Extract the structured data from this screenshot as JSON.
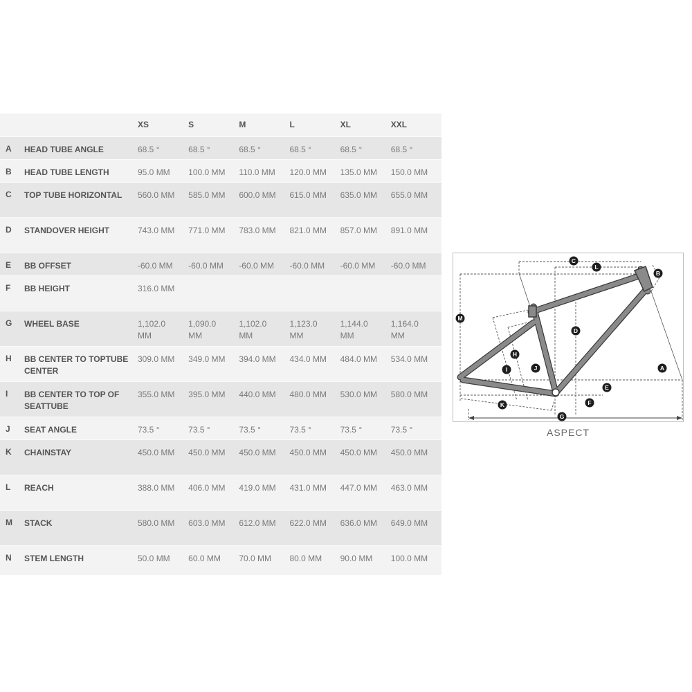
{
  "table": {
    "sizes": [
      "XS",
      "S",
      "M",
      "L",
      "XL",
      "XXL"
    ],
    "rows": [
      {
        "letter": "A",
        "name": "HEAD TUBE ANGLE",
        "values": [
          "68.5 °",
          "68.5 °",
          "68.5 °",
          "68.5 °",
          "68.5 °",
          "68.5 °"
        ]
      },
      {
        "letter": "B",
        "name": "HEAD TUBE LENGTH",
        "values": [
          "95.0 MM",
          "100.0 MM",
          "110.0 MM",
          "120.0 MM",
          "135.0 MM",
          "150.0 MM"
        ]
      },
      {
        "letter": "C",
        "name": "TOP TUBE HORIZONTAL",
        "values": [
          "560.0 MM",
          "585.0 MM",
          "600.0 MM",
          "615.0 MM",
          "635.0 MM",
          "655.0 MM"
        ]
      },
      {
        "letter": "D",
        "name": "STANDOVER HEIGHT",
        "values": [
          "743.0 MM",
          "771.0 MM",
          "783.0 MM",
          "821.0 MM",
          "857.0 MM",
          "891.0 MM"
        ]
      },
      {
        "letter": "E",
        "name": "BB OFFSET",
        "values": [
          "-60.0 MM",
          "-60.0 MM",
          "-60.0 MM",
          "-60.0 MM",
          "-60.0 MM",
          "-60.0 MM"
        ]
      },
      {
        "letter": "F",
        "name": "BB HEIGHT",
        "values": [
          "316.0 MM",
          "",
          "",
          "",
          "",
          ""
        ]
      },
      {
        "letter": "G",
        "name": "WHEEL BASE",
        "values": [
          "1,102.0 MM",
          "1,090.0 MM",
          "1,102.0 MM",
          "1,123.0 MM",
          "1,144.0 MM",
          "1,164.0 MM"
        ]
      },
      {
        "letter": "H",
        "name": "BB CENTER TO TOPTUBE CENTER",
        "values": [
          "309.0 MM",
          "349.0 MM",
          "394.0 MM",
          "434.0 MM",
          "484.0 MM",
          "534.0 MM"
        ]
      },
      {
        "letter": "I",
        "name": "BB CENTER TO TOP OF SEATTUBE",
        "values": [
          "355.0 MM",
          "395.0 MM",
          "440.0 MM",
          "480.0 MM",
          "530.0 MM",
          "580.0 MM"
        ]
      },
      {
        "letter": "J",
        "name": "SEAT ANGLE",
        "values": [
          "73.5 °",
          "73.5 °",
          "73.5 °",
          "73.5 °",
          "73.5 °",
          "73.5 °"
        ]
      },
      {
        "letter": "K",
        "name": "CHAINSTAY",
        "values": [
          "450.0 MM",
          "450.0 MM",
          "450.0 MM",
          "450.0 MM",
          "450.0 MM",
          "450.0 MM"
        ]
      },
      {
        "letter": "L",
        "name": "REACH",
        "values": [
          "388.0 MM",
          "406.0 MM",
          "419.0 MM",
          "431.0 MM",
          "447.0 MM",
          "463.0 MM"
        ]
      },
      {
        "letter": "M",
        "name": "STACK",
        "values": [
          "580.0 MM",
          "603.0 MM",
          "612.0 MM",
          "622.0 MM",
          "636.0 MM",
          "649.0 MM"
        ]
      },
      {
        "letter": "N",
        "name": "STEM LENGTH",
        "values": [
          "50.0 MM",
          "60.0 MM",
          "70.0 MM",
          "80.0 MM",
          "90.0 MM",
          "100.0 MM"
        ]
      }
    ]
  },
  "diagram": {
    "caption": "ASPECT",
    "labels": [
      "A",
      "B",
      "C",
      "D",
      "E",
      "F",
      "G",
      "H",
      "I",
      "J",
      "K",
      "L",
      "M"
    ],
    "frame_color": "#8a8a8a"
  }
}
